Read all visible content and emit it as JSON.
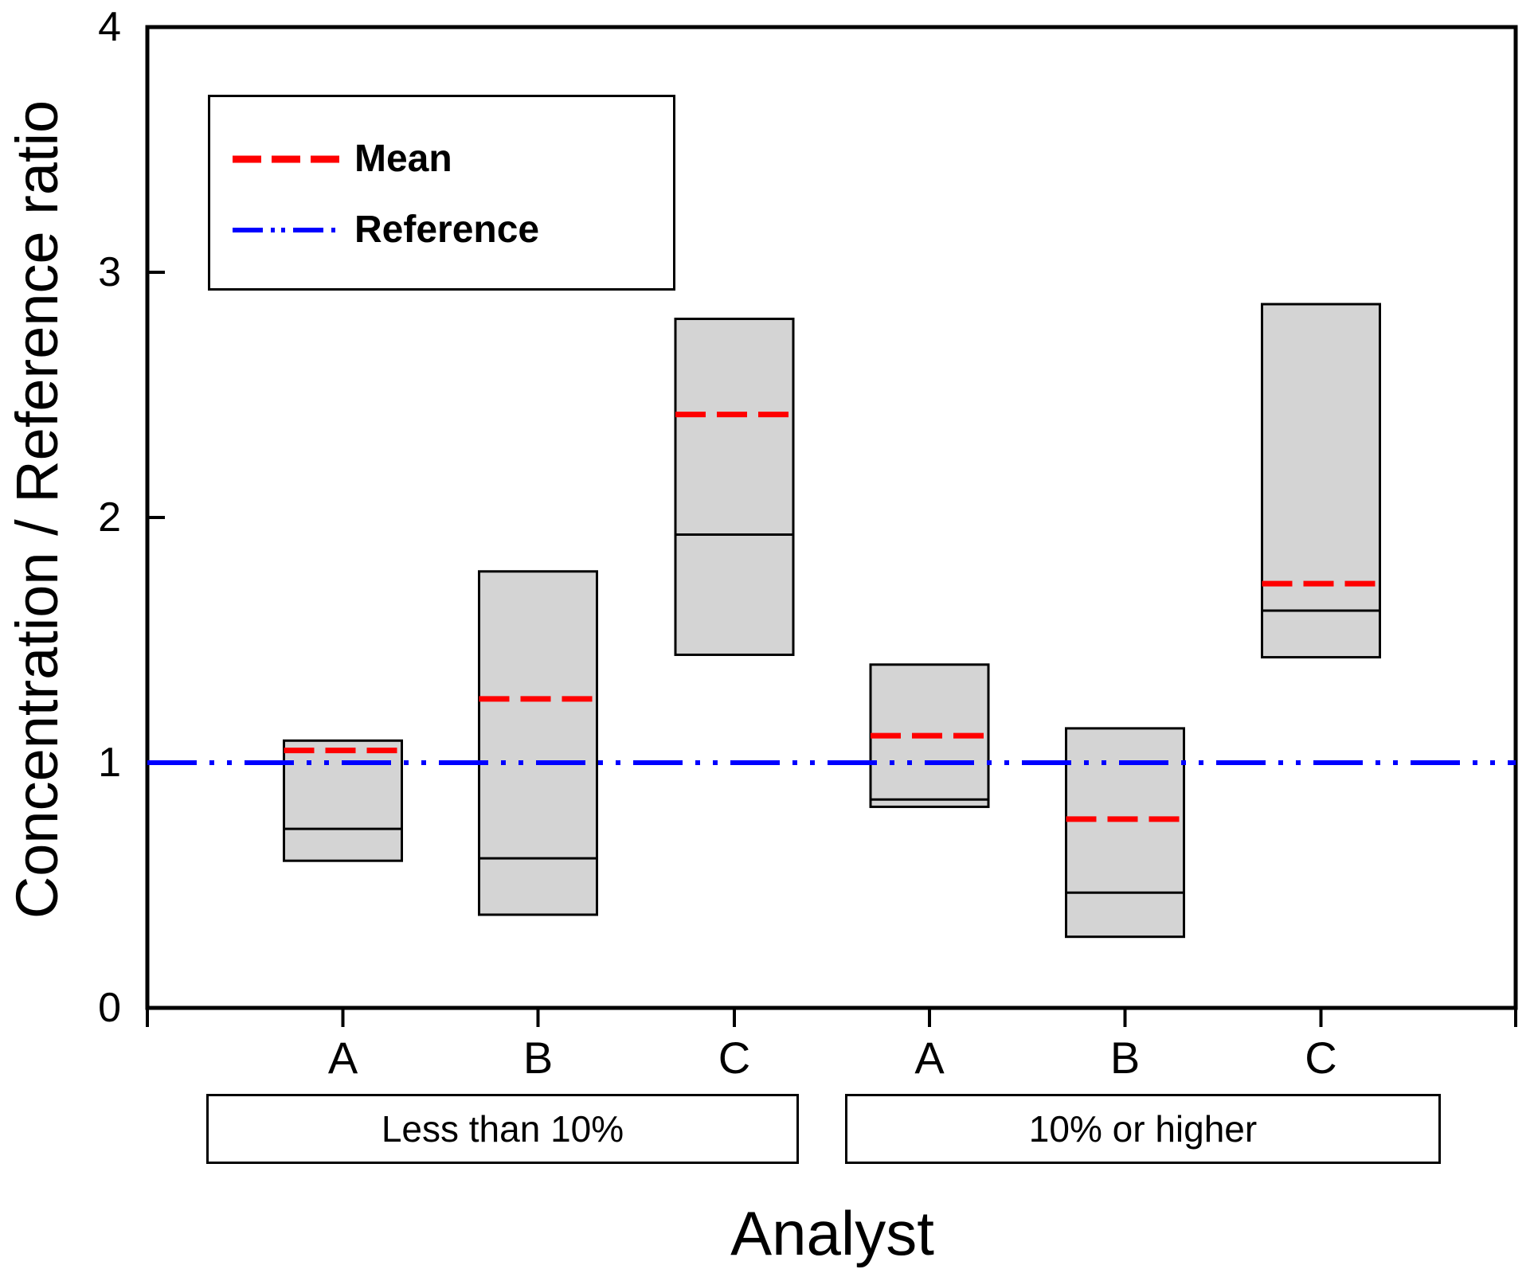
{
  "chart_data": {
    "type": "box",
    "title": "",
    "xlabel": "Analyst",
    "ylabel": "Concentration / Reference ratio",
    "ylim": [
      0,
      4
    ],
    "yticks": [
      0,
      1,
      2,
      3,
      4
    ],
    "grid": false,
    "legend_position": "top-left",
    "reference_value": 1,
    "categories": [
      "A",
      "B",
      "C",
      "A",
      "B",
      "C"
    ],
    "groups": [
      {
        "label": "Less than 10%",
        "boxes": [
          {
            "category": "A",
            "min": 0.6,
            "median": 0.73,
            "mean": 1.05,
            "max": 1.09
          },
          {
            "category": "B",
            "min": 0.38,
            "median": 0.61,
            "mean": 1.26,
            "max": 1.78
          },
          {
            "category": "C",
            "min": 1.44,
            "median": 1.93,
            "mean": 2.42,
            "max": 2.81
          }
        ]
      },
      {
        "label": "10% or higher",
        "boxes": [
          {
            "category": "A",
            "min": 0.82,
            "median": 0.85,
            "mean": 1.11,
            "max": 1.4
          },
          {
            "category": "B",
            "min": 0.29,
            "median": 0.47,
            "mean": 0.77,
            "max": 1.14
          },
          {
            "category": "C",
            "min": 1.43,
            "median": 1.62,
            "mean": 1.73,
            "max": 2.87
          }
        ]
      }
    ],
    "legend": [
      {
        "label": "Mean",
        "color": "#ff0000",
        "style": "dashed"
      },
      {
        "label": "Reference",
        "color": "#0000ff",
        "style": "dash-dot-dot"
      }
    ],
    "colors": {
      "box_fill": "#d4d4d4",
      "box_border": "#000000",
      "median": "#000000",
      "mean": "#ff0000",
      "reference": "#0000ff",
      "axis": "#000000"
    }
  }
}
